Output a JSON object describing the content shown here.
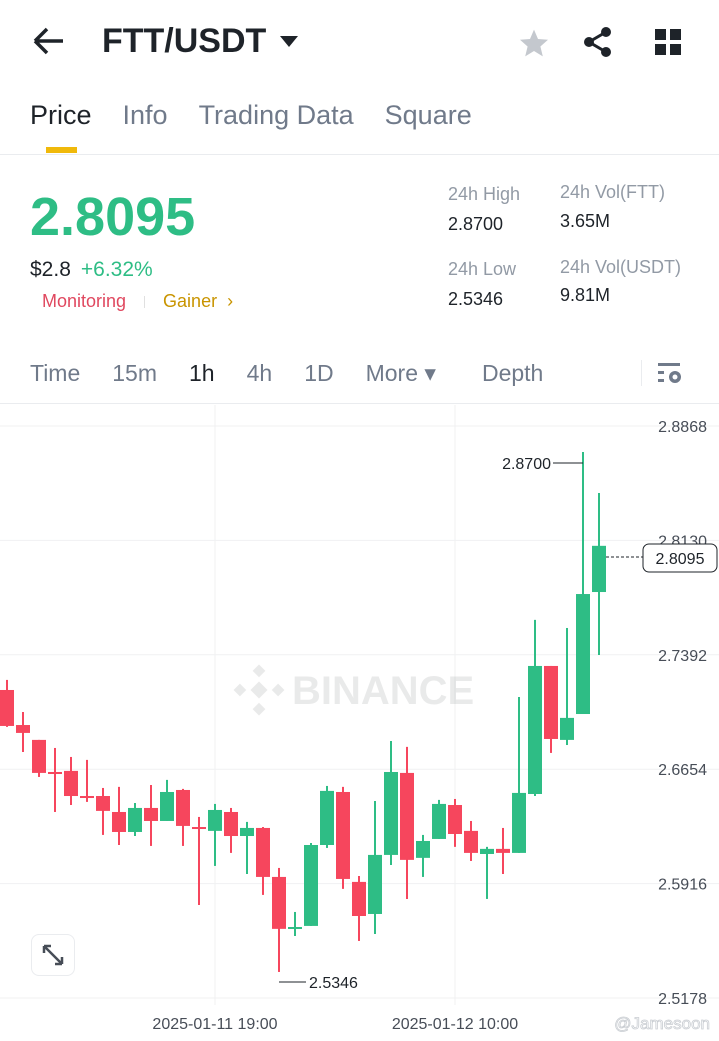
{
  "header": {
    "pair": "FTT/USDT",
    "icons": [
      "back-arrow-icon",
      "caret-down-icon",
      "star-icon",
      "share-icon",
      "grid-icon"
    ]
  },
  "tabs": [
    {
      "label": "Price",
      "active": true
    },
    {
      "label": "Info"
    },
    {
      "label": "Trading Data"
    },
    {
      "label": "Square"
    }
  ],
  "ticker": {
    "price": "2.8095",
    "usd": "$2.8",
    "change": "+6.32%",
    "tag1": "Monitoring",
    "tag2": "Gainer",
    "tag2_arrow": "›",
    "high_label": "24h High",
    "high": "2.8700",
    "low_label": "24h Low",
    "low": "2.5346",
    "vol1_label": "24h Vol(FTT)",
    "vol1": "3.65M",
    "vol2_label": "24h Vol(USDT)",
    "vol2": "9.81M"
  },
  "intervals": [
    {
      "label": "Time"
    },
    {
      "label": "15m"
    },
    {
      "label": "1h",
      "active": true
    },
    {
      "label": "4h"
    },
    {
      "label": "1D"
    },
    {
      "label": "More ▾"
    },
    {
      "label": "Depth"
    }
  ],
  "colors": {
    "up": "#2ebd85",
    "down": "#f6465d",
    "accent": "#f0b90b"
  },
  "chart_data": {
    "type": "candlestick",
    "interval": "1h",
    "ylim": [
      2.5178,
      2.8868
    ],
    "yticks": [
      "2.8868",
      "2.8130",
      "2.7392",
      "2.6654",
      "2.5916",
      "2.5178"
    ],
    "xticks": [
      "2025-01-11 19:00",
      "2025-01-12 10:00"
    ],
    "high_marker": "2.8700",
    "low_marker": "2.5346",
    "last_price": "2.8095",
    "watermark": "BINANCE",
    "candles": [
      [
        2.7165,
        2.723,
        2.6927,
        2.6933
      ],
      [
        2.6939,
        2.7023,
        2.6765,
        2.6888
      ],
      [
        2.6843,
        2.6843,
        2.6604,
        2.663
      ],
      [
        2.6636,
        2.6791,
        2.6378,
        2.6623
      ],
      [
        2.6643,
        2.6733,
        2.6423,
        2.6481
      ],
      [
        2.6481,
        2.6714,
        2.6443,
        2.6475
      ],
      [
        2.6481,
        2.6533,
        2.623,
        2.6385
      ],
      [
        2.6378,
        2.654,
        2.6165,
        2.6249
      ],
      [
        2.6249,
        2.6436,
        2.6223,
        2.6404
      ],
      [
        2.6404,
        2.6552,
        2.6159,
        2.632
      ],
      [
        2.632,
        2.6585,
        2.632,
        2.6507
      ],
      [
        2.652,
        2.6527,
        2.6159,
        2.6288
      ],
      [
        2.6281,
        2.6346,
        2.5778,
        2.6275
      ],
      [
        2.6256,
        2.643,
        2.603,
        2.6391
      ],
      [
        2.6378,
        2.6404,
        2.6114,
        2.6223
      ],
      [
        2.6223,
        2.6314,
        2.5978,
        2.6275
      ],
      [
        2.6275,
        2.6281,
        2.5843,
        2.5959
      ],
      [
        2.5959,
        2.6017,
        2.5346,
        2.5624
      ],
      [
        2.5624,
        2.5733,
        2.5578,
        2.5636
      ],
      [
        2.5643,
        2.6178,
        2.5643,
        2.6165
      ],
      [
        2.6165,
        2.6546,
        2.6146,
        2.6514
      ],
      [
        2.6507,
        2.654,
        2.5882,
        2.5946
      ],
      [
        2.5927,
        2.5965,
        2.5546,
        2.5707
      ],
      [
        2.572,
        2.6449,
        2.5591,
        2.6101
      ],
      [
        2.6101,
        2.6836,
        2.6036,
        2.6636
      ],
      [
        2.663,
        2.6798,
        2.5817,
        2.6069
      ],
      [
        2.6082,
        2.623,
        2.5959,
        2.6191
      ],
      [
        2.6204,
        2.6456,
        2.6204,
        2.643
      ],
      [
        2.6423,
        2.6462,
        2.6153,
        2.6236
      ],
      [
        2.6256,
        2.632,
        2.6062,
        2.6114
      ],
      [
        2.6107,
        2.6153,
        2.5817,
        2.614
      ],
      [
        2.614,
        2.6275,
        2.5978,
        2.6114
      ],
      [
        2.6114,
        2.712,
        2.6114,
        2.6501
      ],
      [
        2.6494,
        2.7617,
        2.6481,
        2.732
      ],
      [
        2.732,
        2.732,
        2.6759,
        2.6849
      ],
      [
        2.6843,
        2.7565,
        2.681,
        2.6985
      ],
      [
        2.701,
        2.87,
        2.701,
        2.7784
      ],
      [
        2.7797,
        2.8436,
        2.7391,
        2.8095
      ]
    ]
  },
  "watermark_user": "@Jamesoon"
}
